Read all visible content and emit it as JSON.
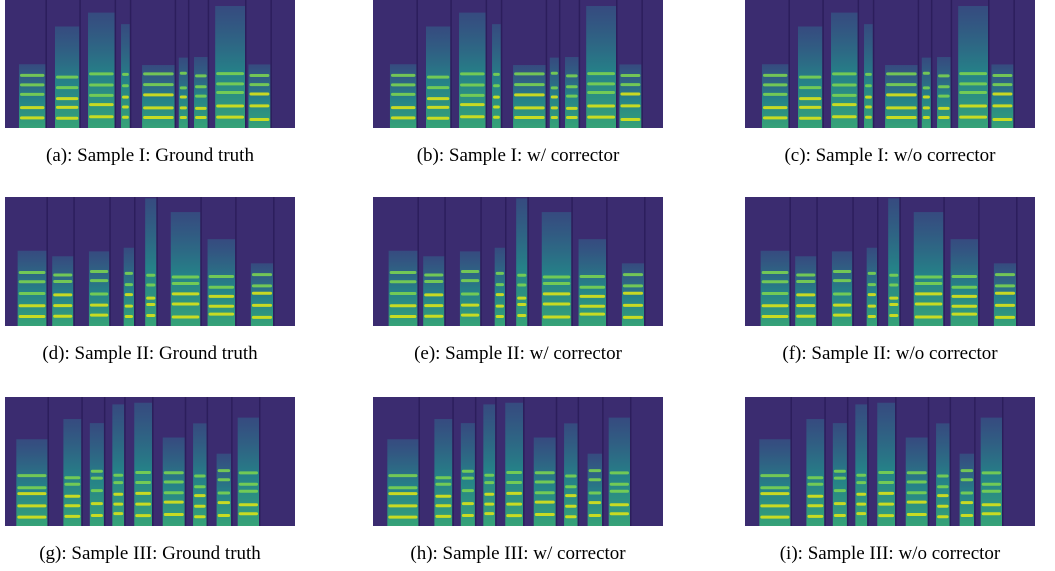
{
  "figure": {
    "panels": [
      {
        "caption": "(a): Sample I: Ground truth"
      },
      {
        "caption": "(b): Sample I: w/ corrector"
      },
      {
        "caption": "(c): Sample I: w/o corrector"
      },
      {
        "caption": "(d): Sample II: Ground truth"
      },
      {
        "caption": "(e): Sample II: w/ corrector"
      },
      {
        "caption": "(f): Sample II: w/o corrector"
      },
      {
        "caption": "(g): Sample III: Ground truth"
      },
      {
        "caption": "(h): Sample III: w/ corrector"
      },
      {
        "caption": "(i): Sample III: w/o corrector"
      }
    ]
  }
}
